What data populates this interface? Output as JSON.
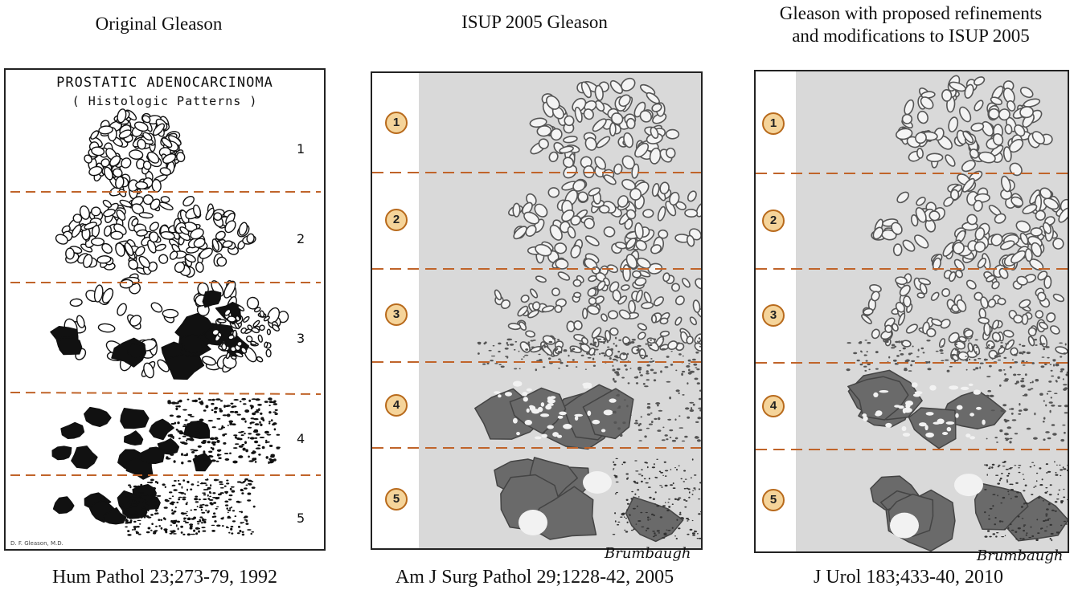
{
  "columns": [
    {
      "title_lines": [
        "Original Gleason"
      ],
      "citation": "Hum Pathol 23;273-79, 1992",
      "header_line1": "PROSTATIC ADENOCARCINOMA",
      "header_line2": "( Histologic Patterns )",
      "grades": [
        "1",
        "2",
        "3",
        "4",
        "5"
      ],
      "credit": "D. F. Gleason, M.D."
    },
    {
      "title_lines": [
        "ISUP 2005 Gleason"
      ],
      "citation": "Am J Surg Pathol 29;1228-42, 2005",
      "grades": [
        "1",
        "2",
        "3",
        "4",
        "5"
      ],
      "signature": "Brumbaugh"
    },
    {
      "title_lines": [
        "Gleason with proposed refinements",
        "and modifications to ISUP 2005"
      ],
      "citation": "J Urol 183;433-40, 2010",
      "grades": [
        "1",
        "2",
        "3",
        "4",
        "5"
      ],
      "signature": "Brumbaugh"
    }
  ],
  "colors": {
    "dash": "#c0642a",
    "circle_fill": "#f5d49a",
    "circle_border": "#b86a1c",
    "panel_bg": "#d8d8d8",
    "tissue": "#6a6a6a"
  }
}
